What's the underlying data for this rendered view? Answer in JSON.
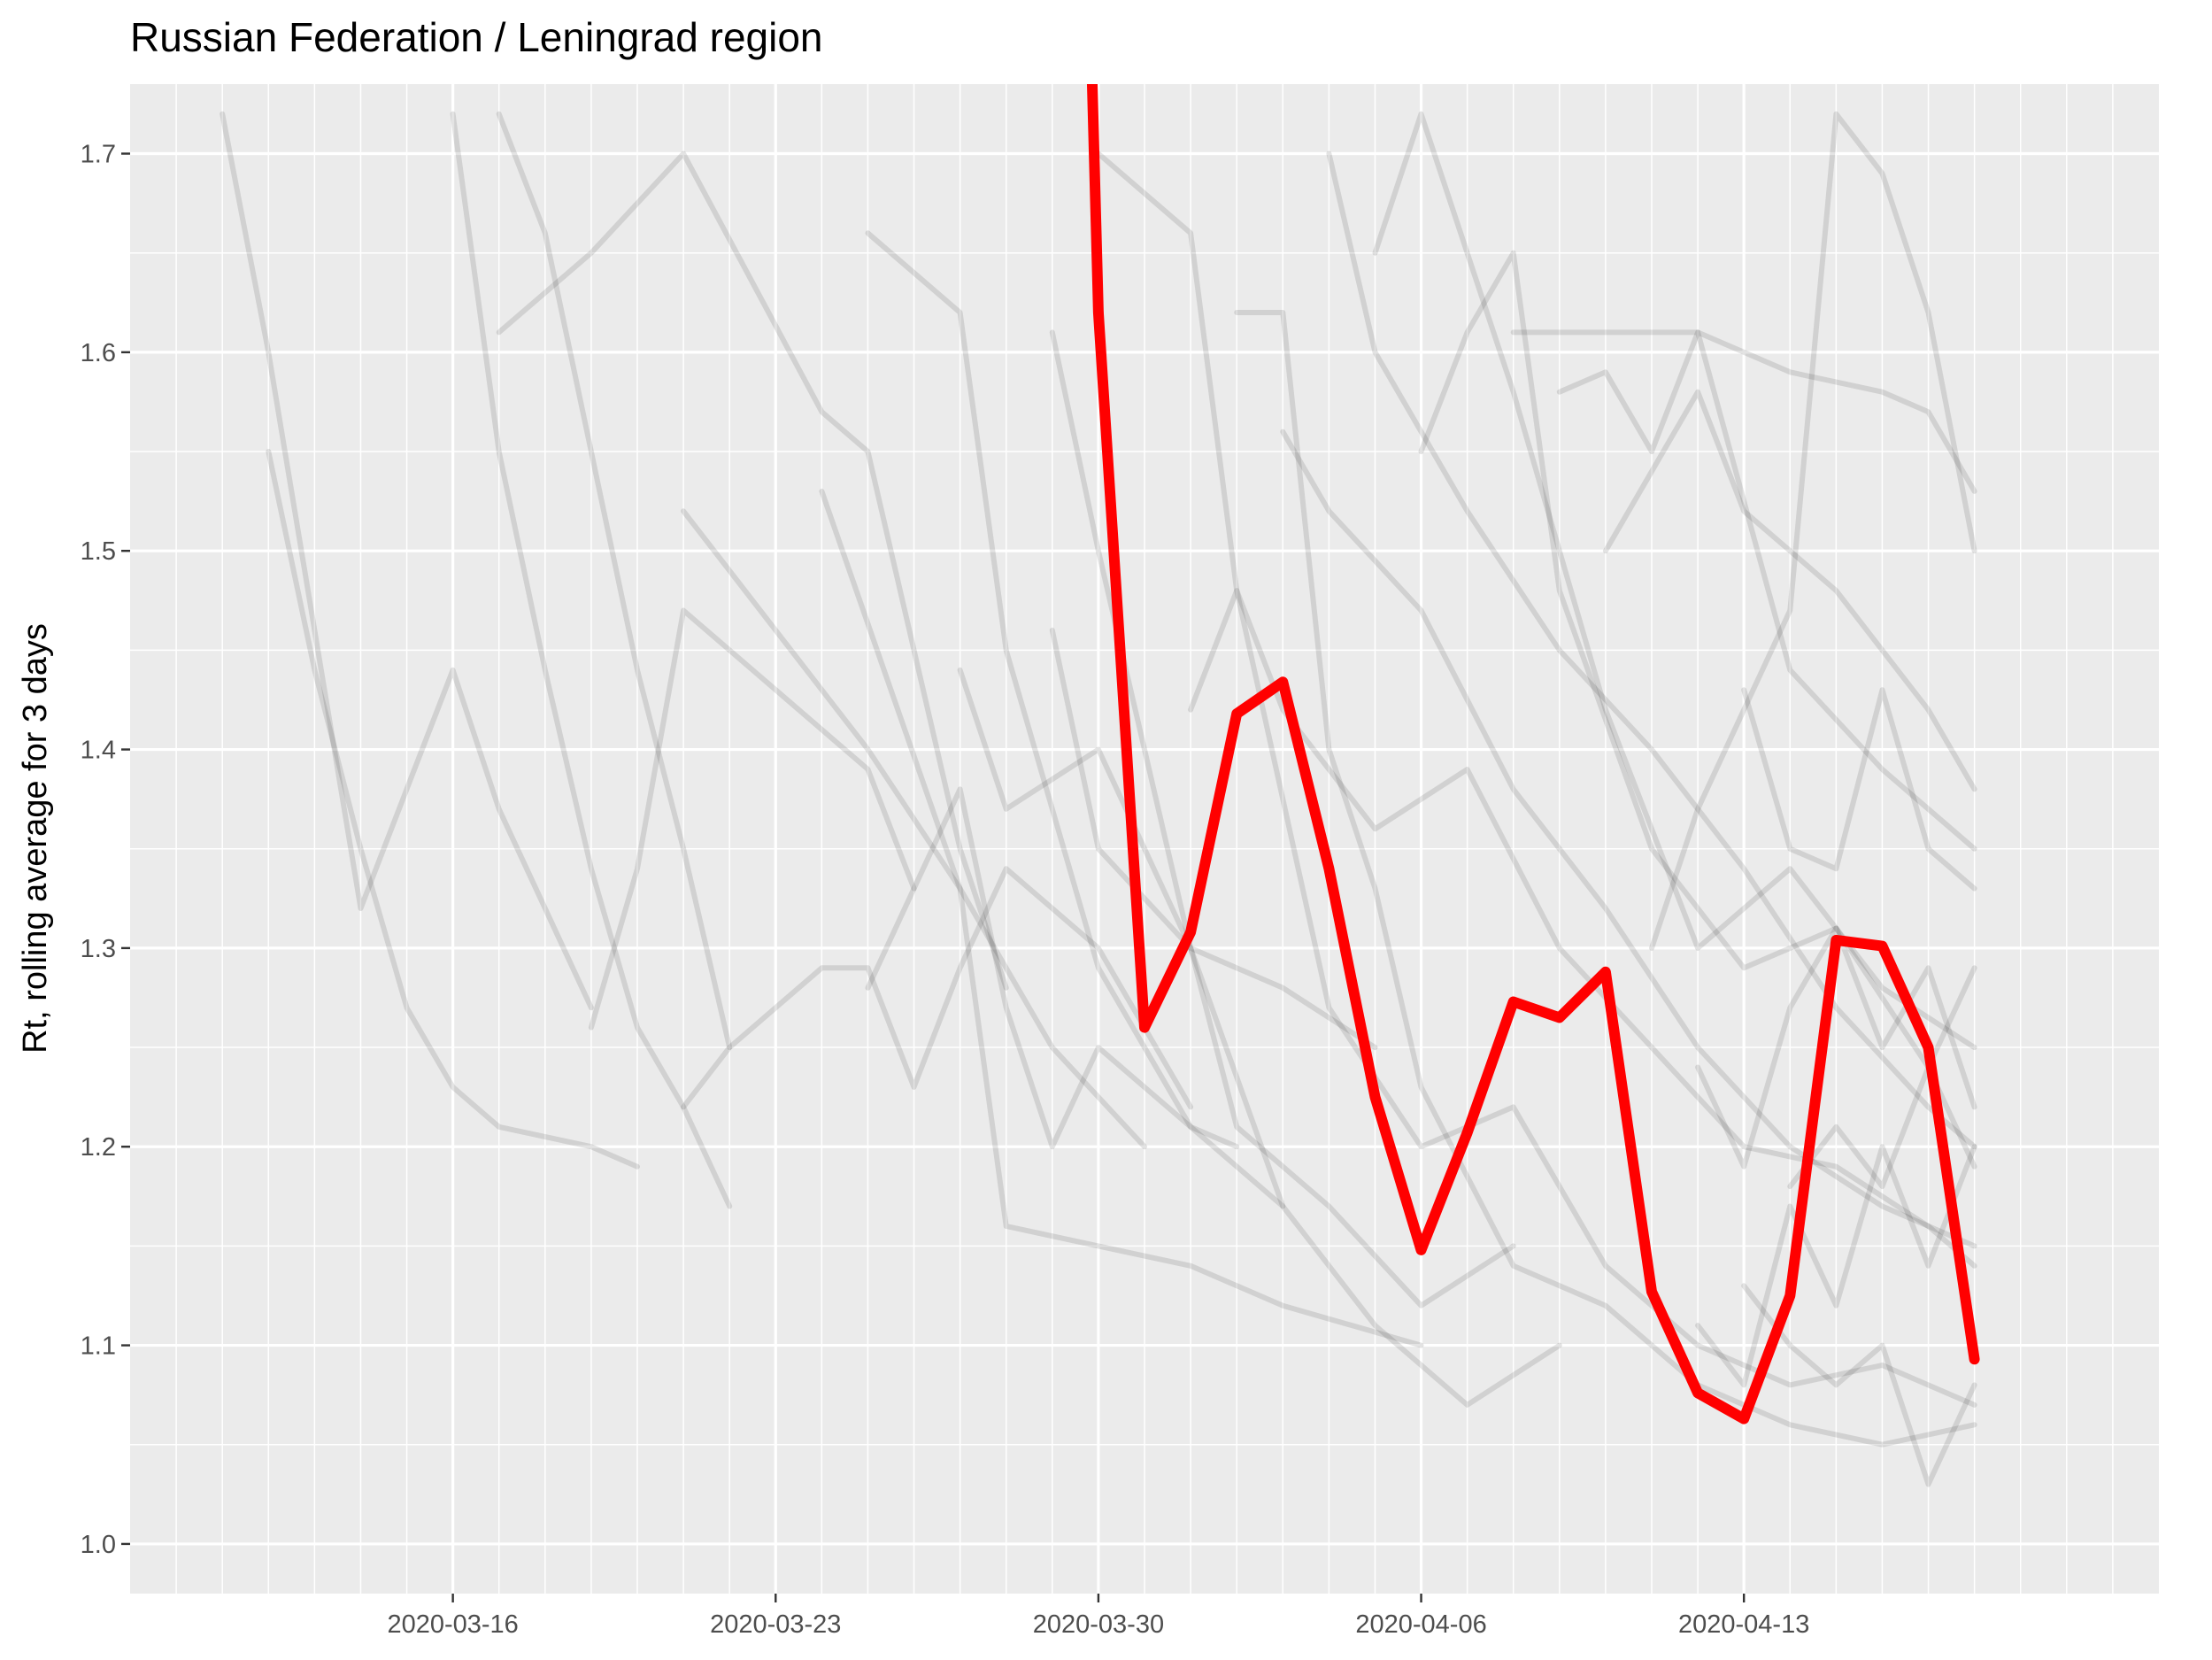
{
  "chart_data": {
    "type": "line",
    "title": "Russian Federation / Leningrad region",
    "xlabel": "",
    "ylabel": "Rt, rolling average for 3 days",
    "x_ticks": [
      "2020-03-16",
      "2020-03-23",
      "2020-03-30",
      "2020-04-06",
      "2020-04-13"
    ],
    "y_ticks": [
      "1.0",
      "1.1",
      "1.2",
      "1.3",
      "1.4",
      "1.5",
      "1.6",
      "1.7"
    ],
    "xlim": [
      "2020-03-09",
      "2020-04-22"
    ],
    "ylim": [
      0.975,
      1.735
    ],
    "grid": true,
    "background": "#EBEBEB",
    "grid_major_color": "#FFFFFF",
    "highlight_color": "#FF0000",
    "context_color": "#000000",
    "highlight_series": {
      "x": [
        "2020-03-30",
        "2020-03-31",
        "2020-04-01",
        "2020-04-02",
        "2020-04-03",
        "2020-04-04",
        "2020-04-05",
        "2020-04-06",
        "2020-04-07",
        "2020-04-08",
        "2020-04-09",
        "2020-04-10",
        "2020-04-11",
        "2020-04-12",
        "2020-04-13",
        "2020-04-14",
        "2020-04-15",
        "2020-04-16",
        "2020-04-17",
        "2020-04-18"
      ],
      "y": [
        1.62,
        1.26,
        1.308,
        1.418,
        1.434,
        1.34,
        1.225,
        1.148,
        1.207,
        1.273,
        1.265,
        1.288,
        1.127,
        1.076,
        1.063,
        1.125,
        1.304,
        1.301,
        1.25,
        1.093
      ]
    },
    "context_series": [
      {
        "x": [
          "2020-03-11",
          "2020-03-12",
          "2020-03-13",
          "2020-03-14",
          "2020-03-15",
          "2020-03-16",
          "2020-03-17",
          "2020-03-19"
        ],
        "y": [
          1.72,
          1.6,
          1.46,
          1.32,
          1.38,
          1.44,
          1.37,
          1.27
        ]
      },
      {
        "x": [
          "2020-03-12",
          "2020-03-13",
          "2020-03-14",
          "2020-03-15",
          "2020-03-16",
          "2020-03-17",
          "2020-03-19",
          "2020-03-20"
        ],
        "y": [
          1.55,
          1.44,
          1.35,
          1.27,
          1.23,
          1.21,
          1.2,
          1.19
        ]
      },
      {
        "x": [
          "2020-03-17",
          "2020-03-19",
          "2020-03-21",
          "2020-03-24",
          "2020-03-25",
          "2020-03-27",
          "2020-03-28"
        ],
        "y": [
          1.61,
          1.65,
          1.7,
          1.57,
          1.55,
          1.35,
          1.28
        ]
      },
      {
        "x": [
          "2020-03-17",
          "2020-03-18",
          "2020-03-19",
          "2020-03-20",
          "2020-03-21",
          "2020-03-22"
        ],
        "y": [
          1.72,
          1.66,
          1.55,
          1.44,
          1.35,
          1.25
        ]
      },
      {
        "x": [
          "2020-03-16",
          "2020-03-17",
          "2020-03-18",
          "2020-03-19",
          "2020-03-20",
          "2020-03-21",
          "2020-03-22"
        ],
        "y": [
          1.72,
          1.55,
          1.44,
          1.34,
          1.26,
          1.22,
          1.17
        ]
      },
      {
        "x": [
          "2020-03-19",
          "2020-03-20",
          "2020-03-21",
          "2020-03-23",
          "2020-03-25",
          "2020-03-26"
        ],
        "y": [
          1.26,
          1.34,
          1.47,
          1.43,
          1.39,
          1.33
        ]
      },
      {
        "x": [
          "2020-03-21",
          "2020-03-23",
          "2020-03-25",
          "2020-03-27",
          "2020-03-29",
          "2020-03-31"
        ],
        "y": [
          1.52,
          1.46,
          1.4,
          1.33,
          1.25,
          1.2
        ]
      },
      {
        "x": [
          "2020-03-21",
          "2020-03-22",
          "2020-03-24",
          "2020-03-25",
          "2020-03-26",
          "2020-03-27",
          "2020-03-28",
          "2020-03-30",
          "2020-04-01"
        ],
        "y": [
          1.22,
          1.25,
          1.29,
          1.29,
          1.23,
          1.29,
          1.34,
          1.3,
          1.22
        ]
      },
      {
        "x": [
          "2020-03-24",
          "2020-03-27",
          "2020-03-28",
          "2020-03-30",
          "2020-04-01",
          "2020-04-03",
          "2020-04-06"
        ],
        "y": [
          1.53,
          1.33,
          1.16,
          1.15,
          1.14,
          1.12,
          1.1
        ]
      },
      {
        "x": [
          "2020-03-25",
          "2020-03-27",
          "2020-03-28",
          "2020-03-29",
          "2020-03-30",
          "2020-04-01",
          "2020-04-03"
        ],
        "y": [
          1.28,
          1.38,
          1.27,
          1.2,
          1.25,
          1.21,
          1.17
        ]
      },
      {
        "x": [
          "2020-03-27",
          "2020-03-28",
          "2020-03-30",
          "2020-04-01",
          "2020-04-03",
          "2020-04-05"
        ],
        "y": [
          1.44,
          1.37,
          1.4,
          1.3,
          1.28,
          1.25
        ]
      },
      {
        "x": [
          "2020-03-25",
          "2020-03-27",
          "2020-03-28",
          "2020-03-30",
          "2020-04-01",
          "2020-04-02"
        ],
        "y": [
          1.66,
          1.62,
          1.45,
          1.29,
          1.21,
          1.2
        ]
      },
      {
        "x": [
          "2020-03-29",
          "2020-03-30",
          "2020-04-01",
          "2020-04-03",
          "2020-04-05",
          "2020-04-07",
          "2020-04-09"
        ],
        "y": [
          1.61,
          1.5,
          1.3,
          1.17,
          1.11,
          1.07,
          1.1
        ]
      },
      {
        "x": [
          "2020-03-29",
          "2020-03-30",
          "2020-04-01",
          "2020-04-02",
          "2020-04-04",
          "2020-04-06",
          "2020-04-08"
        ],
        "y": [
          1.46,
          1.35,
          1.3,
          1.21,
          1.17,
          1.12,
          1.15
        ]
      },
      {
        "x": [
          "2020-03-30",
          "2020-04-01",
          "2020-04-02",
          "2020-04-04",
          "2020-04-06",
          "2020-04-08",
          "2020-04-10",
          "2020-04-12",
          "2020-04-14",
          "2020-04-16",
          "2020-04-18"
        ],
        "y": [
          1.7,
          1.66,
          1.48,
          1.27,
          1.2,
          1.22,
          1.14,
          1.1,
          1.08,
          1.09,
          1.07
        ]
      },
      {
        "x": [
          "2020-04-01",
          "2020-04-02",
          "2020-04-03",
          "2020-04-05",
          "2020-04-07",
          "2020-04-09",
          "2020-04-11",
          "2020-04-13",
          "2020-04-15",
          "2020-04-17",
          "2020-04-18"
        ],
        "y": [
          1.42,
          1.48,
          1.42,
          1.36,
          1.39,
          1.3,
          1.25,
          1.2,
          1.19,
          1.16,
          1.14
        ]
      },
      {
        "x": [
          "2020-04-02",
          "2020-04-03",
          "2020-04-04",
          "2020-04-05",
          "2020-04-06",
          "2020-04-08",
          "2020-04-10",
          "2020-04-12",
          "2020-04-14",
          "2020-04-16",
          "2020-04-18"
        ],
        "y": [
          1.62,
          1.62,
          1.4,
          1.33,
          1.23,
          1.14,
          1.12,
          1.08,
          1.06,
          1.05,
          1.06
        ]
      },
      {
        "x": [
          "2020-04-03",
          "2020-04-04",
          "2020-04-06",
          "2020-04-08",
          "2020-04-10",
          "2020-04-12",
          "2020-04-14",
          "2020-04-16",
          "2020-04-18"
        ],
        "y": [
          1.56,
          1.52,
          1.47,
          1.38,
          1.32,
          1.25,
          1.2,
          1.17,
          1.15
        ]
      },
      {
        "x": [
          "2020-04-04",
          "2020-04-05",
          "2020-04-07",
          "2020-04-09",
          "2020-04-11",
          "2020-04-13",
          "2020-04-15",
          "2020-04-17",
          "2020-04-18"
        ],
        "y": [
          1.7,
          1.6,
          1.52,
          1.45,
          1.4,
          1.34,
          1.27,
          1.22,
          1.2
        ]
      },
      {
        "x": [
          "2020-04-05",
          "2020-04-06",
          "2020-04-08",
          "2020-04-10",
          "2020-04-12",
          "2020-04-14",
          "2020-04-16",
          "2020-04-18"
        ],
        "y": [
          1.65,
          1.72,
          1.58,
          1.42,
          1.3,
          1.34,
          1.28,
          1.25
        ]
      },
      {
        "x": [
          "2020-04-06",
          "2020-04-07",
          "2020-04-08",
          "2020-04-09",
          "2020-04-11",
          "2020-04-13",
          "2020-04-15",
          "2020-04-17",
          "2020-04-18"
        ],
        "y": [
          1.55,
          1.61,
          1.65,
          1.48,
          1.35,
          1.29,
          1.31,
          1.24,
          1.19
        ]
      },
      {
        "x": [
          "2020-04-08",
          "2020-04-09",
          "2020-04-10",
          "2020-04-12",
          "2020-04-14",
          "2020-04-16",
          "2020-04-18"
        ],
        "y": [
          1.61,
          1.61,
          1.61,
          1.61,
          1.44,
          1.39,
          1.35
        ]
      },
      {
        "x": [
          "2020-04-09",
          "2020-04-10",
          "2020-04-11",
          "2020-04-12",
          "2020-04-14",
          "2020-04-16",
          "2020-04-17",
          "2020-04-18"
        ],
        "y": [
          1.58,
          1.59,
          1.55,
          1.61,
          1.59,
          1.58,
          1.57,
          1.53
        ]
      },
      {
        "x": [
          "2020-04-10",
          "2020-04-11",
          "2020-04-12",
          "2020-04-13",
          "2020-04-15",
          "2020-04-17",
          "2020-04-18"
        ],
        "y": [
          1.5,
          1.54,
          1.58,
          1.52,
          1.48,
          1.42,
          1.38
        ]
      },
      {
        "x": [
          "2020-04-11",
          "2020-04-12",
          "2020-04-13",
          "2020-04-14",
          "2020-04-15",
          "2020-04-16",
          "2020-04-17",
          "2020-04-18"
        ],
        "y": [
          1.3,
          1.37,
          1.42,
          1.47,
          1.72,
          1.69,
          1.62,
          1.5
        ]
      },
      {
        "x": [
          "2020-04-12",
          "2020-04-13",
          "2020-04-14",
          "2020-04-15",
          "2020-04-16",
          "2020-04-17",
          "2020-04-18"
        ],
        "y": [
          1.11,
          1.08,
          1.17,
          1.12,
          1.2,
          1.14,
          1.2
        ]
      },
      {
        "x": [
          "2020-04-12",
          "2020-04-13",
          "2020-04-14",
          "2020-04-15",
          "2020-04-16",
          "2020-04-17",
          "2020-04-18"
        ],
        "y": [
          1.24,
          1.19,
          1.27,
          1.31,
          1.25,
          1.29,
          1.22
        ]
      },
      {
        "x": [
          "2020-04-13",
          "2020-04-14",
          "2020-04-15",
          "2020-04-16",
          "2020-04-17",
          "2020-04-18"
        ],
        "y": [
          1.43,
          1.35,
          1.34,
          1.43,
          1.35,
          1.33
        ]
      },
      {
        "x": [
          "2020-04-13",
          "2020-04-14",
          "2020-04-15",
          "2020-04-16",
          "2020-04-17",
          "2020-04-18"
        ],
        "y": [
          1.13,
          1.1,
          1.08,
          1.1,
          1.03,
          1.08
        ]
      },
      {
        "x": [
          "2020-04-14",
          "2020-04-15",
          "2020-04-16",
          "2020-04-17",
          "2020-04-18"
        ],
        "y": [
          1.18,
          1.21,
          1.18,
          1.24,
          1.29
        ]
      }
    ]
  }
}
